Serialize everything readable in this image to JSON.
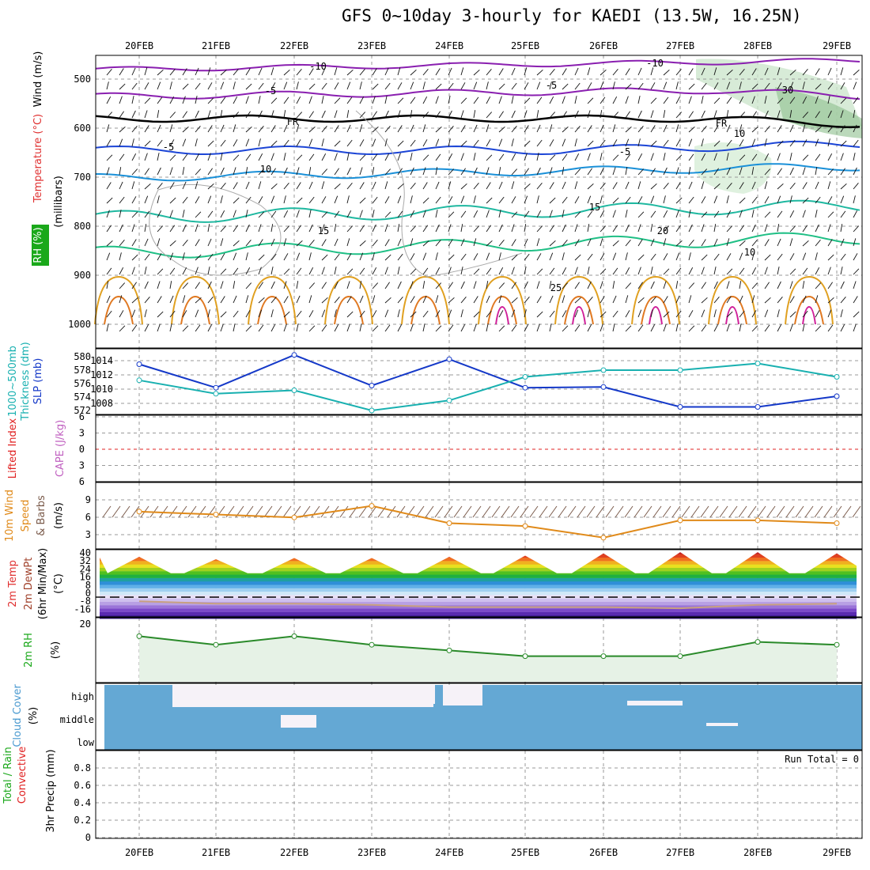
{
  "title": "GFS 0~10day 3-hourly for KAEDI (13.5W, 16.25N)",
  "dates": [
    "20FEB",
    "21FEB",
    "22FEB",
    "23FEB",
    "24FEB",
    "25FEB",
    "26FEB",
    "27FEB",
    "28FEB",
    "29FEB"
  ],
  "colors": {
    "wind": "#000000",
    "temp": "#e03030",
    "rh": "#1aa81a",
    "thick": "#18b0b0",
    "slp": "#1438c8",
    "cape": "#c060c0",
    "li": "#e02020",
    "speed": "#e08a1a",
    "cloud": "#64a8d4",
    "rhfill": "#e6f2e6",
    "rhline": "#2a8a2a"
  },
  "panels": {
    "upper": {
      "label_wind": "Wind (m/s)",
      "label_temp": "Temperature (°C)",
      "label_rh": "RH (%)",
      "label_units": "(millibars)",
      "y_ticks": [
        "500",
        "600",
        "700",
        "800",
        "900",
        "1000"
      ],
      "contour_labels": [
        "-10",
        "-10",
        "-5",
        "-5",
        "FR",
        "FR",
        "-5",
        "-5",
        "10",
        "15",
        "15",
        "20",
        "25",
        "10",
        "30",
        "10"
      ]
    },
    "thickness": {
      "label_a": "1000~500mb",
      "label_b": "Thickness (dm)",
      "label_c": "SLP (mb)",
      "left_ticks": [
        "580",
        "578",
        "576",
        "574",
        "572"
      ],
      "right_ticks": [
        "1014",
        "1012",
        "1010",
        "1008"
      ]
    },
    "cape": {
      "label_li": "Lifted Index",
      "label_cape": "CAPE (J/kg)",
      "ticks": [
        "6",
        "3",
        "0",
        "3",
        "6"
      ]
    },
    "wind10": {
      "label_a": "10m Wind",
      "label_b": "Speed",
      "label_c": "& Barbs",
      "label_units": "(m/s)",
      "ticks": [
        "9",
        "6",
        "3"
      ]
    },
    "temp2m": {
      "label_a": "2m Temp",
      "label_b": "2m DewPt",
      "label_c": "(6hr Min/Max)",
      "label_units": "(°C)",
      "ticks": [
        "40",
        "32",
        "24",
        "16",
        "8",
        "0",
        "-8",
        "-16"
      ]
    },
    "rh2m": {
      "label_a": "2m RH",
      "label_units": "(%)",
      "ticks": [
        "20"
      ]
    },
    "cloud": {
      "label_a": "Cloud Cover",
      "label_units": "(%)",
      "levels": [
        "high",
        "middle",
        "low"
      ]
    },
    "precip": {
      "label_a": "Total / Rain",
      "label_b": "Convective",
      "label_c": "3hr Precip (mm)",
      "run_total": "Run Total = 0",
      "ticks": [
        "0.8",
        "0.6",
        "0.4",
        "0.2",
        "0"
      ]
    }
  },
  "chart_data": [
    {
      "type": "line",
      "title": "1000~500mb Thickness (dm) / SLP (mb)",
      "x": [
        "20FEB",
        "21FEB",
        "22FEB",
        "23FEB",
        "24FEB",
        "25FEB",
        "26FEB",
        "27FEB",
        "28FEB",
        "29FEB"
      ],
      "series": [
        {
          "name": "SLP (mb)",
          "axis": "right",
          "values": [
            1013.5,
            1010.2,
            1014.8,
            1010.5,
            1014.2,
            1010.2,
            1010.3,
            1007.5,
            1007.5,
            1009.0
          ]
        },
        {
          "name": "1000~500mb Thickness (dm)",
          "axis": "left",
          "values": [
            576.5,
            574.5,
            575.0,
            572.0,
            573.5,
            577.0,
            578.0,
            578.0,
            579.0,
            577.0
          ]
        }
      ],
      "ylim_left": [
        571,
        581
      ],
      "ylim_right": [
        1006,
        1016
      ]
    },
    {
      "type": "line",
      "title": "10m Wind Speed (m/s)",
      "x": [
        "20FEB",
        "21FEB",
        "22FEB",
        "23FEB",
        "24FEB",
        "25FEB",
        "26FEB",
        "27FEB",
        "28FEB",
        "29FEB"
      ],
      "series": [
        {
          "name": "Speed",
          "values": [
            7.0,
            6.5,
            6.0,
            8.0,
            5.0,
            4.5,
            2.5,
            5.5,
            5.5,
            5.0
          ]
        }
      ],
      "ylim": [
        0,
        12
      ]
    },
    {
      "type": "line",
      "title": "2m Temp (°C)",
      "x": [
        "20FEB",
        "21FEB",
        "22FEB",
        "23FEB",
        "24FEB",
        "25FEB",
        "26FEB",
        "27FEB",
        "28FEB",
        "29FEB"
      ],
      "series": [
        {
          "name": "2m Temp max",
          "values": [
            34,
            32,
            33,
            33,
            34,
            35,
            37,
            38,
            38,
            37
          ]
        },
        {
          "name": "2m DewPt",
          "values": [
            -4,
            -6,
            -6,
            -7,
            -9,
            -9,
            -9,
            -10,
            -7,
            -6
          ]
        }
      ],
      "ylim": [
        -16,
        40
      ]
    },
    {
      "type": "line",
      "title": "2m RH (%)",
      "x": [
        "20FEB",
        "21FEB",
        "22FEB",
        "23FEB",
        "24FEB",
        "25FEB",
        "26FEB",
        "27FEB",
        "28FEB",
        "29FEB"
      ],
      "series": [
        {
          "name": "2m RH",
          "values": [
            16,
            13,
            16,
            13,
            11,
            9,
            9,
            9,
            14,
            13
          ]
        }
      ],
      "ylim": [
        0,
        22
      ]
    }
  ]
}
